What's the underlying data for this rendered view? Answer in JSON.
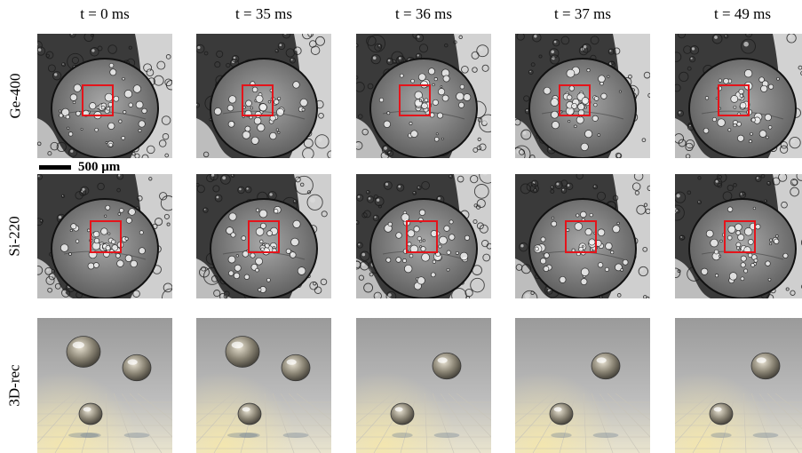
{
  "columns": [
    {
      "label": "t = 0 ms"
    },
    {
      "label": "t = 35 ms"
    },
    {
      "label": "t = 36 ms"
    },
    {
      "label": "t = 37 ms"
    },
    {
      "label": "t = 49 ms"
    }
  ],
  "rows": [
    {
      "label": "Ge-400"
    },
    {
      "label": "Si-220"
    },
    {
      "label": "3D-rec"
    }
  ],
  "scale_bar": {
    "label": "500 μm"
  },
  "colors": {
    "roi_box": "#e5141b",
    "background": "#ffffff"
  }
}
